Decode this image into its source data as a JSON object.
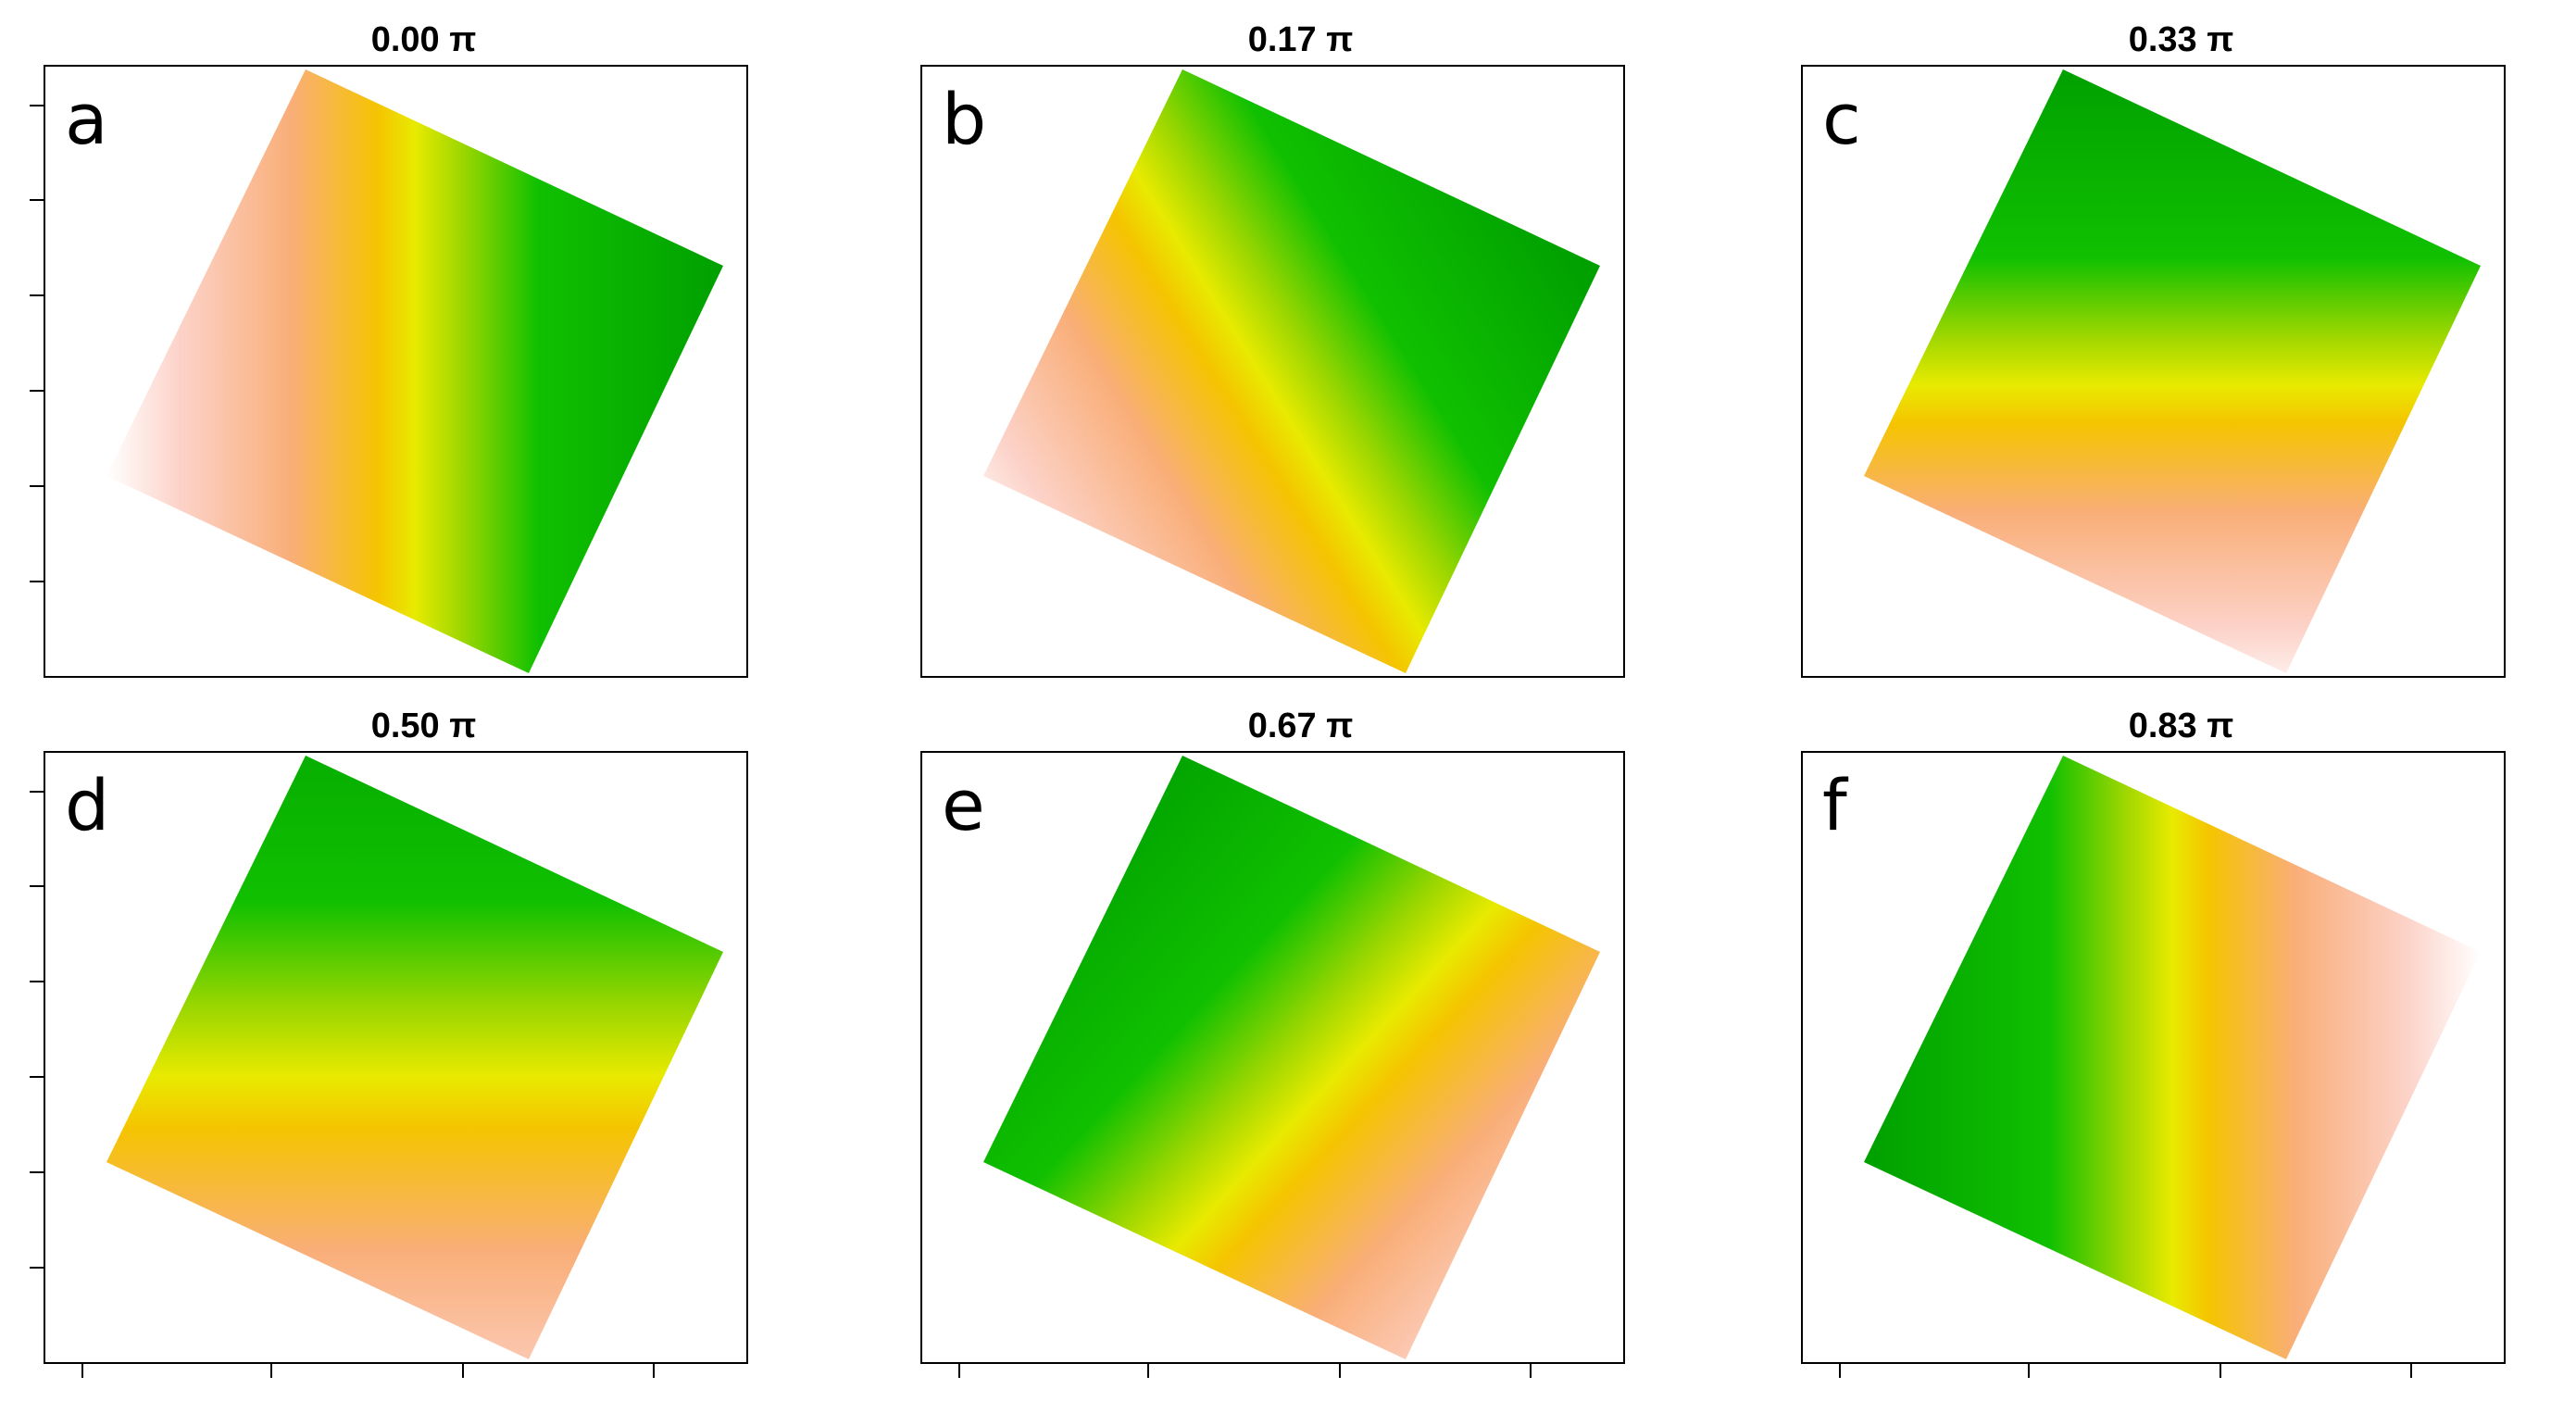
{
  "panels": [
    {
      "title": "0.00 π",
      "label": "a"
    },
    {
      "title": "0.17 π",
      "label": "b"
    },
    {
      "title": "0.33 π",
      "label": "c"
    },
    {
      "title": "0.50 π",
      "label": "d"
    },
    {
      "title": "0.67 π",
      "label": "e"
    },
    {
      "title": "0.83 π",
      "label": "f"
    }
  ]
}
